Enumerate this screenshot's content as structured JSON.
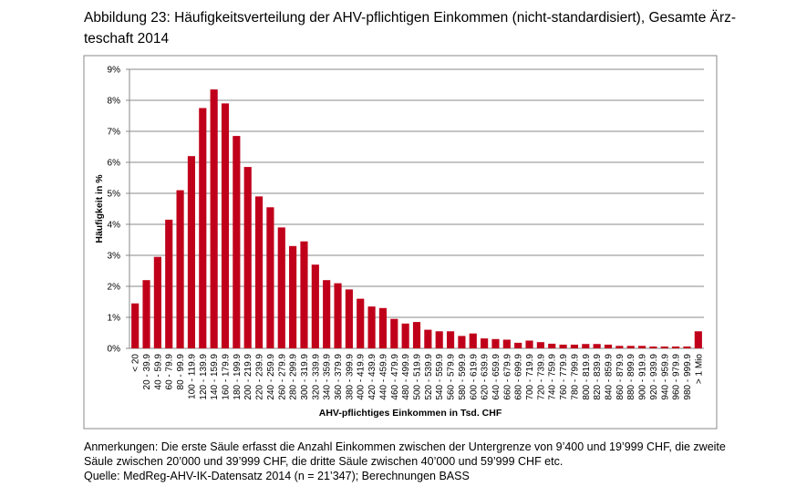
{
  "chart_data": {
    "type": "bar",
    "title_lines": [
      "Abbildung 23: Häufigkeitsverteilung der AHV-pflichtigen Einkommen (nicht-standardisiert), Gesamte Ärz-",
      "teschaft 2014"
    ],
    "x_label": "AHV-pflichtiges Einkommen in Tsd. CHF",
    "y_label": "Häufigkeit in %",
    "categories": [
      "< 20",
      "20 - 39.9",
      "40 - 59.9",
      "60 - 79.9",
      "80 - 99.9",
      "100 - 119.9",
      "120 - 139.9",
      "140 - 159.9",
      "160 - 179.9",
      "180 - 199.9",
      "200 - 219.9",
      "220 - 239.9",
      "240 - 259.9",
      "260 - 279.9",
      "280 - 299.9",
      "300 - 319.9",
      "320 - 339.9",
      "340 - 359.9",
      "360 - 379.9",
      "380 - 399.9",
      "400 - 419.9",
      "420 - 439.9",
      "440 - 459.9",
      "460 - 479.9",
      "480 - 499.9",
      "500 - 519.9",
      "520 - 539.9",
      "540 - 559.9",
      "560 - 579.9",
      "580 - 599.9",
      "600 - 619.9",
      "620 - 639.9",
      "640 - 659.9",
      "660 - 679.9",
      "680 - 699.9",
      "700 - 719.9",
      "720 - 739.9",
      "740 - 759.9",
      "760 - 779.9",
      "780 - 799.9",
      "800 - 819.9",
      "820 - 839.9",
      "840 - 859.9",
      "860 - 879.9",
      "880 - 899.9",
      "900 - 919.9",
      "920 - 939.9",
      "940 - 959.9",
      "960 - 979.9",
      "980 - 999.9",
      "> 1 Mio"
    ],
    "values": [
      1.45,
      2.2,
      2.95,
      4.15,
      5.1,
      6.2,
      7.75,
      8.35,
      7.9,
      6.85,
      5.85,
      4.9,
      4.55,
      3.9,
      3.3,
      3.45,
      2.7,
      2.2,
      2.1,
      1.9,
      1.6,
      1.35,
      1.3,
      0.95,
      0.8,
      0.85,
      0.6,
      0.55,
      0.55,
      0.4,
      0.48,
      0.32,
      0.3,
      0.28,
      0.18,
      0.25,
      0.2,
      0.15,
      0.12,
      0.12,
      0.14,
      0.14,
      0.12,
      0.08,
      0.08,
      0.08,
      0.06,
      0.06,
      0.06,
      0.06,
      0.55
    ],
    "color": "#c0001a",
    "ylim": [
      0,
      9
    ],
    "yticks": [
      {
        "value": 0,
        "label": "0%"
      },
      {
        "value": 1,
        "label": "1%"
      },
      {
        "value": 2,
        "label": "2%"
      },
      {
        "value": 3,
        "label": "3%"
      },
      {
        "value": 4,
        "label": "4%"
      },
      {
        "value": 5,
        "label": "5%"
      },
      {
        "value": 6,
        "label": "6%"
      },
      {
        "value": 7,
        "label": "7%"
      },
      {
        "value": 8,
        "label": "8%"
      },
      {
        "value": 9,
        "label": "9%"
      }
    ],
    "grid": true,
    "notes": [
      "Anmerkungen: Die erste Säule erfasst die Anzahl Einkommen zwischen der Untergrenze von 9’400 und 19’999 CHF, die zweite",
      "Säule zwischen 20’000 und 39’999 CHF, die dritte Säule zwischen 40’000 und 59’999 CHF etc.",
      "Quelle: MedReg-AHV-IK-Datensatz 2014 (n = 21’347); Berechnungen BASS"
    ]
  }
}
